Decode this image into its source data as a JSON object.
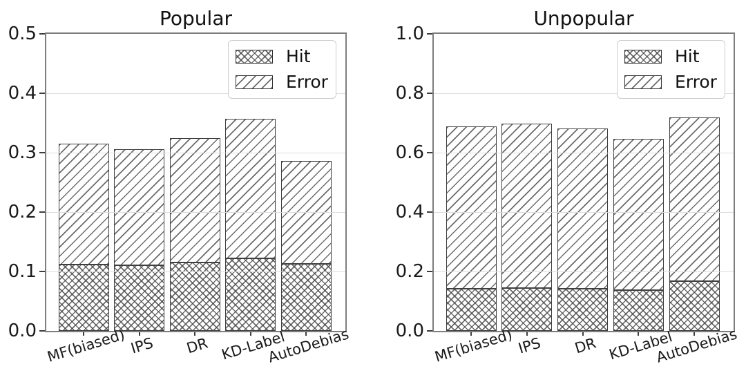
{
  "colors": {
    "background": "#ffffff",
    "axis_spine": "#7d7d7d",
    "gridline": "#dcdcdc",
    "bar_edge": "#3f3f3f",
    "hatch": "#464646",
    "text": "#111111",
    "legend_border": "#cccccc"
  },
  "chart_data": [
    {
      "type": "bar",
      "stacked": true,
      "title": "Popular",
      "categories": [
        "MF(biased)",
        "IPS",
        "DR",
        "KD-Label",
        "AutoDebias"
      ],
      "series": [
        {
          "name": "Hit",
          "hatch": "cross",
          "values": [
            0.112,
            0.11,
            0.115,
            0.122,
            0.113
          ]
        },
        {
          "name": "Error",
          "hatch": "diagonal",
          "values": [
            0.203,
            0.196,
            0.209,
            0.235,
            0.173
          ]
        }
      ],
      "stack_totals": [
        0.315,
        0.306,
        0.324,
        0.357,
        0.286
      ],
      "ylim": [
        0,
        0.5
      ],
      "yticks": [
        0,
        0.1,
        0.2,
        0.3,
        0.4,
        0.5
      ],
      "ytick_labels": [
        "0.0",
        "0.1",
        "0.2",
        "0.3",
        "0.4",
        "0.5"
      ],
      "grid": true,
      "legend_position": "upper right"
    },
    {
      "type": "bar",
      "stacked": true,
      "title": "Unpopular",
      "categories": [
        "MF(biased)",
        "IPS",
        "DR",
        "KD-Label",
        "AutoDebias"
      ],
      "series": [
        {
          "name": "Hit",
          "hatch": "cross",
          "values": [
            0.142,
            0.144,
            0.142,
            0.137,
            0.168
          ]
        },
        {
          "name": "Error",
          "hatch": "diagonal",
          "values": [
            0.546,
            0.554,
            0.539,
            0.51,
            0.55
          ]
        }
      ],
      "stack_totals": [
        0.688,
        0.698,
        0.681,
        0.647,
        0.718
      ],
      "ylim": [
        0,
        1.0
      ],
      "yticks": [
        0,
        0.2,
        0.4,
        0.6,
        0.8,
        1.0
      ],
      "ytick_labels": [
        "0.0",
        "0.2",
        "0.4",
        "0.6",
        "0.8",
        "1.0"
      ],
      "grid": true,
      "legend_position": "upper right"
    }
  ]
}
